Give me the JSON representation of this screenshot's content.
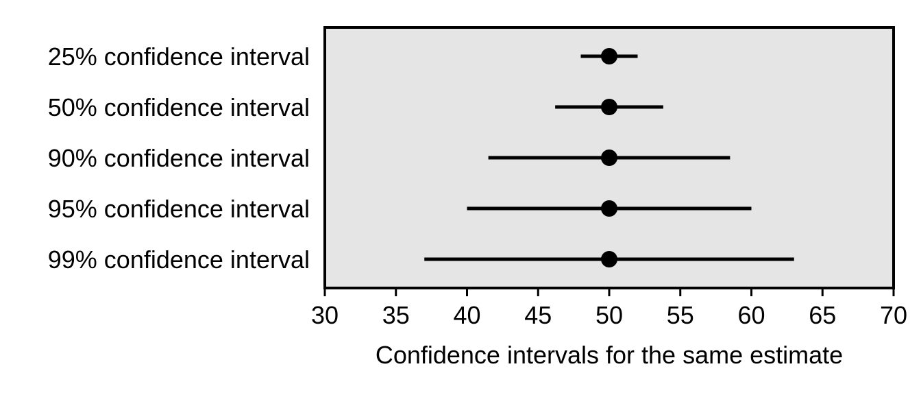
{
  "chart_data": {
    "type": "dot-and-whisker",
    "orientation": "horizontal",
    "title": "",
    "xlabel": "Confidence intervals for the same estimate",
    "ylabel": "",
    "xlim": [
      30,
      70
    ],
    "xticks": [
      30,
      35,
      40,
      45,
      50,
      55,
      60,
      65,
      70
    ],
    "grid": false,
    "legend": "none",
    "panel_color": "#e5e5e5",
    "mark_color": "#000000",
    "categories": [
      "25% confidence interval",
      "50% confidence interval",
      "90% confidence interval",
      "95% confidence interval",
      "99% confidence interval"
    ],
    "estimates": [
      50,
      50,
      50,
      50,
      50
    ],
    "lower": [
      48,
      46.2,
      41.5,
      40,
      37
    ],
    "upper": [
      52,
      53.8,
      58.5,
      60,
      63
    ]
  }
}
